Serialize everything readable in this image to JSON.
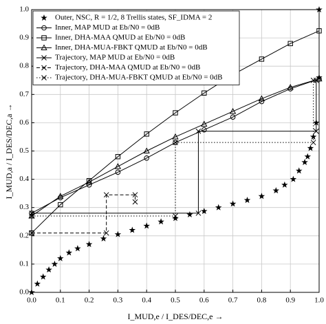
{
  "chart_data": {
    "type": "line",
    "xlabel": "I_MUD,e / I_DES/DEC,e →",
    "ylabel": "I_MUD,a / I_DES/DEC,a →",
    "xlim": [
      0,
      1
    ],
    "ylim": [
      0,
      1
    ],
    "xticks": [
      {
        "value": 0,
        "label": "0.0"
      },
      0.1,
      0.2,
      0.3,
      0.4,
      0.5,
      0.6,
      0.7,
      0.8,
      0.9,
      {
        "value": 1,
        "label": "1.0"
      }
    ],
    "yticks": [
      {
        "value": 0,
        "label": "0.0"
      },
      0.1,
      0.2,
      0.3,
      0.4,
      0.5,
      0.6,
      0.7,
      0.8,
      0.9,
      {
        "value": 1,
        "label": "1.0"
      }
    ],
    "grid": true,
    "legend": "upper left",
    "series": [
      {
        "name": "Outer, NSC, R = 1/2, 8 Trellis states, SF_IDMA = 2",
        "color": "#000000",
        "marker": "star",
        "dash": "none",
        "x": [
          0,
          0.02,
          0.04,
          0.06,
          0.08,
          0.1,
          0.13,
          0.16,
          0.2,
          0.25,
          0.3,
          0.35,
          0.4,
          0.45,
          0.5,
          0.55,
          0.6,
          0.65,
          0.7,
          0.75,
          0.8,
          0.85,
          0.88,
          0.91,
          0.93,
          0.95,
          0.96,
          0.97,
          0.98,
          0.99,
          1,
          1
        ],
        "values": [
          0,
          0.03,
          0.055,
          0.08,
          0.1,
          0.12,
          0.14,
          0.155,
          0.17,
          0.19,
          0.205,
          0.22,
          0.235,
          0.25,
          0.262,
          0.275,
          0.287,
          0.3,
          0.313,
          0.326,
          0.34,
          0.36,
          0.38,
          0.4,
          0.43,
          0.46,
          0.48,
          0.51,
          0.55,
          0.6,
          0.76,
          1
        ]
      },
      {
        "name": "Inner, MAP MUD at Eb/N0 = 0dB",
        "color": "#000000",
        "marker": "circle",
        "dash": "solid",
        "x": [
          0,
          0.1,
          0.2,
          0.3,
          0.4,
          0.5,
          0.6,
          0.7,
          0.8,
          0.9,
          1
        ],
        "values": [
          0.28,
          0.335,
          0.38,
          0.425,
          0.475,
          0.53,
          0.575,
          0.62,
          0.675,
          0.72,
          0.755
        ]
      },
      {
        "name": "Inner, DHA-MAA QMUD at Eb/N0 = 0dB",
        "color": "#000000",
        "marker": "square",
        "dash": "solid",
        "x": [
          0,
          0.1,
          0.2,
          0.3,
          0.4,
          0.5,
          0.6,
          0.7,
          0.8,
          0.9,
          1
        ],
        "values": [
          0.21,
          0.31,
          0.395,
          0.48,
          0.56,
          0.635,
          0.705,
          0.77,
          0.825,
          0.88,
          0.925
        ]
      },
      {
        "name": "Inner, DHA-MUA-FBKT QMUD at Eb/N0 = 0dB",
        "color": "#000000",
        "marker": "triangle",
        "dash": "solid",
        "x": [
          0,
          0.1,
          0.2,
          0.3,
          0.4,
          0.5,
          0.6,
          0.7,
          0.8,
          0.9,
          1
        ],
        "values": [
          0.27,
          0.34,
          0.39,
          0.445,
          0.5,
          0.55,
          0.595,
          0.64,
          0.685,
          0.725,
          0.755
        ]
      },
      {
        "name": "Trajectory, MAP MUD at Eb/N0 = 0dB",
        "color": "#000000",
        "marker": "x",
        "dash": "solid",
        "x": [
          0,
          0.58,
          0.58,
          0.99,
          0.99
        ],
        "values": [
          0.28,
          0.28,
          0.57,
          0.57,
          0.75
        ]
      },
      {
        "name": "Trajectory, DHA-MAA QMUD at Eb/N0 = 0dB",
        "color": "#000000",
        "marker": "x",
        "dash": "dashed",
        "x": [
          0,
          0.26,
          0.26,
          0.36,
          0.36
        ],
        "values": [
          0.21,
          0.21,
          0.345,
          0.345,
          0.32
        ]
      },
      {
        "name": "Trajectory, DHA-MUA-FBKT QMUD at Eb/N0 = 0dB",
        "color": "#000000",
        "marker": "x",
        "dash": "dotted",
        "x": [
          0,
          0.5,
          0.5,
          0.98,
          0.98
        ],
        "values": [
          0.27,
          0.27,
          0.53,
          0.53,
          0.75
        ]
      }
    ]
  }
}
